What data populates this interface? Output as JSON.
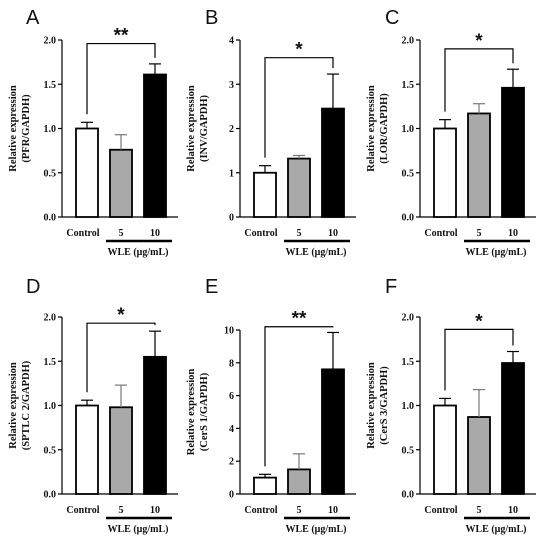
{
  "figure": {
    "colors": {
      "control": "#ffffff",
      "dose5": "#a9a9a9",
      "dose10": "#000000",
      "stroke": "#000000"
    }
  },
  "chart_data": [
    {
      "type": "bar",
      "panel": "A",
      "ylabel_line1": "Relative expression",
      "ylabel_line2": "(PFR/GAPDH)",
      "categories": [
        "Control",
        "5",
        "10"
      ],
      "group_label": "WLE (μg/mL)",
      "values": [
        1.0,
        0.76,
        1.61
      ],
      "errors": [
        0.07,
        0.17,
        0.12
      ],
      "ylim": [
        0,
        2.0
      ],
      "yticks": [
        "0.0",
        "0.5",
        "1.0",
        "1.5",
        "2.0"
      ],
      "ytick_values": [
        0,
        0.5,
        1.0,
        1.5,
        2.0
      ],
      "significance": "**",
      "bracket_between": [
        "Control",
        "10"
      ],
      "bracket_value": 1.96
    },
    {
      "type": "bar",
      "panel": "B",
      "ylabel_line1": "Relative expression",
      "ylabel_line2": "(INV/GAPDH)",
      "categories": [
        "Control",
        "5",
        "10"
      ],
      "group_label": "WLE (μg/mL)",
      "values": [
        1.0,
        1.32,
        2.45
      ],
      "errors": [
        0.16,
        0.07,
        0.78
      ],
      "ylim": [
        0,
        4
      ],
      "yticks": [
        "0",
        "1",
        "2",
        "3",
        "4"
      ],
      "ytick_values": [
        0,
        1,
        2,
        3,
        4
      ],
      "significance": "*",
      "bracket_between": [
        "Control",
        "10"
      ],
      "bracket_value": 3.6
    },
    {
      "type": "bar",
      "panel": "C",
      "ylabel_line1": "Relative expression",
      "ylabel_line2": "(LOR/GAPDH)",
      "categories": [
        "Control",
        "5",
        "10"
      ],
      "group_label": "WLE (μg/mL)",
      "values": [
        1.0,
        1.17,
        1.46
      ],
      "errors": [
        0.1,
        0.11,
        0.21
      ],
      "ylim": [
        0,
        2.0
      ],
      "yticks": [
        "0.0",
        "0.5",
        "1.0",
        "1.5",
        "2.0"
      ],
      "ytick_values": [
        0,
        0.5,
        1.0,
        1.5,
        2.0
      ],
      "significance": "*",
      "bracket_between": [
        "Control",
        "10"
      ],
      "bracket_value": 1.9
    },
    {
      "type": "bar",
      "panel": "D",
      "ylabel_line1": "Relative expression",
      "ylabel_line2": "(SPTLC 2/GAPDH)",
      "categories": [
        "Control",
        "5",
        "10"
      ],
      "group_label": "WLE (μg/mL)",
      "values": [
        1.0,
        0.98,
        1.55
      ],
      "errors": [
        0.06,
        0.25,
        0.29
      ],
      "ylim": [
        0,
        2.0
      ],
      "yticks": [
        "0.0",
        "0.5",
        "1.0",
        "1.5",
        "2.0"
      ],
      "ytick_values": [
        0,
        0.5,
        1.0,
        1.5,
        2.0
      ],
      "significance": "*",
      "bracket_between": [
        "Control",
        "10"
      ],
      "bracket_value": 1.93
    },
    {
      "type": "bar",
      "panel": "E",
      "ylabel_line1": "Relative expression",
      "ylabel_line2": "(CerS 1/GAPDH)",
      "categories": [
        "Control",
        "5",
        "10"
      ],
      "group_label": "WLE (μg/mL)",
      "values": [
        1.0,
        1.5,
        7.6
      ],
      "errors": [
        0.2,
        0.95,
        2.25
      ],
      "ylim": [
        0,
        10
      ],
      "yticks": [
        "0",
        "2",
        "4",
        "6",
        "8",
        "10"
      ],
      "ytick_values": [
        0,
        2,
        4,
        6,
        8,
        10
      ],
      "significance": "**",
      "bracket_between": [
        "Control",
        "10"
      ],
      "bracket_value": 10.2
    },
    {
      "type": "bar",
      "panel": "F",
      "ylabel_line1": "Relative expression",
      "ylabel_line2": "(CerS 3/GAPDH)",
      "categories": [
        "Control",
        "5",
        "10"
      ],
      "group_label": "WLE (μg/mL)",
      "values": [
        1.0,
        0.87,
        1.48
      ],
      "errors": [
        0.08,
        0.31,
        0.13
      ],
      "ylim": [
        0,
        2.0
      ],
      "yticks": [
        "0.0",
        "0.5",
        "1.0",
        "1.5",
        "2.0"
      ],
      "ytick_values": [
        0,
        0.5,
        1.0,
        1.5,
        2.0
      ],
      "significance": "*",
      "bracket_between": [
        "Control",
        "10"
      ],
      "bracket_value": 1.86
    }
  ]
}
